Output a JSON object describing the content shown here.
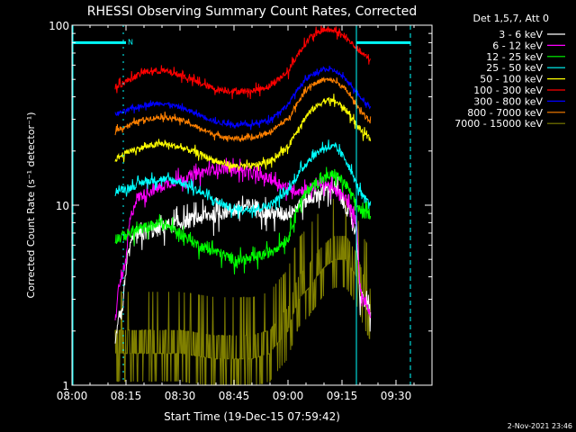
{
  "chart_data": {
    "type": "line",
    "title": "RHESSI Observing Summary Count Rates, Corrected",
    "xlabel": "Start Time (19-Dec-15 07:59:42)",
    "ylabel": "Corrected Count Rate (s⁻¹ detector⁻¹)",
    "ylog": true,
    "ylim": [
      1,
      100
    ],
    "xlim_minutes": [
      0,
      100
    ],
    "x_ticks": [
      "08:00",
      "08:15",
      "08:30",
      "08:45",
      "09:00",
      "09:15",
      "09:30"
    ],
    "x_tick_minutes": [
      0,
      15,
      30,
      45,
      60,
      75,
      90
    ],
    "y_ticks": [
      "1",
      "10",
      "100"
    ],
    "y_tick_values": [
      1,
      10,
      100
    ],
    "legend_title": "Det 1,5,7, Att 0",
    "legend_position": "right",
    "timestamp": "2-Nov-2021 23:46",
    "flag_label": "N",
    "data_start_minute": 12,
    "data_end_minute": 83,
    "markers": {
      "color": "#00ffff",
      "solid_vertical_minute": 79,
      "dashed_vertical_minute": 94,
      "left_vertical_minute": 0,
      "flag_bar_before_minutes": [
        0,
        15
      ],
      "flag_bar_after_minutes": [
        79,
        94
      ],
      "flag_bar_level": 80
    },
    "series": [
      {
        "name": "3 - 6 keV",
        "color": "#ffffff",
        "noise": 0.1,
        "points": [
          [
            12,
            1.6
          ],
          [
            13,
            2.6
          ],
          [
            14,
            2.5
          ],
          [
            15,
            4.5
          ],
          [
            17,
            6.5
          ],
          [
            20,
            7
          ],
          [
            25,
            7.5
          ],
          [
            30,
            8
          ],
          [
            35,
            8.5
          ],
          [
            40,
            9
          ],
          [
            45,
            9.5
          ],
          [
            50,
            10
          ],
          [
            55,
            9
          ],
          [
            60,
            9
          ],
          [
            63,
            10
          ],
          [
            66,
            11
          ],
          [
            70,
            12
          ],
          [
            73,
            12.5
          ],
          [
            76,
            10
          ],
          [
            79,
            7
          ],
          [
            80,
            3
          ],
          [
            81,
            3
          ],
          [
            83,
            2.5
          ]
        ]
      },
      {
        "name": "6 - 12 keV",
        "color": "#ff00ff",
        "noise": 0.07,
        "points": [
          [
            12,
            2.2
          ],
          [
            13,
            3.5
          ],
          [
            15,
            4.8
          ],
          [
            16,
            8
          ],
          [
            18,
            11
          ],
          [
            22,
            12
          ],
          [
            28,
            13.5
          ],
          [
            35,
            15
          ],
          [
            40,
            16
          ],
          [
            45,
            16
          ],
          [
            50,
            15
          ],
          [
            55,
            14
          ],
          [
            60,
            12.5
          ],
          [
            63,
            12
          ],
          [
            66,
            12.5
          ],
          [
            70,
            13.5
          ],
          [
            73,
            12
          ],
          [
            76,
            11
          ],
          [
            79,
            8
          ],
          [
            80,
            3.5
          ],
          [
            81,
            3
          ],
          [
            83,
            2.5
          ]
        ]
      },
      {
        "name": "12 - 25 keV",
        "color": "#00ff00",
        "noise": 0.07,
        "points": [
          [
            12,
            6.5
          ],
          [
            16,
            7
          ],
          [
            20,
            7.5
          ],
          [
            25,
            8
          ],
          [
            30,
            7
          ],
          [
            35,
            6
          ],
          [
            40,
            5.5
          ],
          [
            45,
            5
          ],
          [
            50,
            5
          ],
          [
            55,
            5.5
          ],
          [
            60,
            6.5
          ],
          [
            63,
            10
          ],
          [
            66,
            12.5
          ],
          [
            70,
            14
          ],
          [
            73,
            15
          ],
          [
            76,
            13
          ],
          [
            79,
            10
          ],
          [
            81,
            9
          ],
          [
            83,
            9
          ]
        ]
      },
      {
        "name": "25 - 50 keV",
        "color": "#00ffff",
        "noise": 0.05,
        "points": [
          [
            12,
            12
          ],
          [
            16,
            12.5
          ],
          [
            20,
            13.5
          ],
          [
            25,
            14
          ],
          [
            30,
            13.5
          ],
          [
            35,
            12
          ],
          [
            40,
            10.5
          ],
          [
            45,
            9.5
          ],
          [
            50,
            9.5
          ],
          [
            55,
            10
          ],
          [
            60,
            12
          ],
          [
            63,
            15
          ],
          [
            66,
            18
          ],
          [
            70,
            21
          ],
          [
            73,
            21
          ],
          [
            76,
            18
          ],
          [
            79,
            13
          ],
          [
            81,
            11
          ],
          [
            83,
            10
          ]
        ]
      },
      {
        "name": "50 - 100 keV",
        "color": "#ffff00",
        "noise": 0.04,
        "points": [
          [
            12,
            18
          ],
          [
            16,
            20
          ],
          [
            20,
            21
          ],
          [
            25,
            22
          ],
          [
            30,
            21
          ],
          [
            35,
            19.5
          ],
          [
            40,
            17.5
          ],
          [
            45,
            16.5
          ],
          [
            50,
            16.5
          ],
          [
            55,
            17.5
          ],
          [
            60,
            21
          ],
          [
            63,
            27
          ],
          [
            66,
            33
          ],
          [
            70,
            38
          ],
          [
            73,
            38
          ],
          [
            76,
            34
          ],
          [
            79,
            28
          ],
          [
            81,
            25
          ],
          [
            83,
            23
          ]
        ]
      },
      {
        "name": "100 - 300 keV",
        "color": "#ff0000",
        "noise": 0.04,
        "points": [
          [
            12,
            45
          ],
          [
            16,
            50
          ],
          [
            20,
            55
          ],
          [
            25,
            56
          ],
          [
            30,
            53
          ],
          [
            35,
            48
          ],
          [
            40,
            44
          ],
          [
            45,
            43
          ],
          [
            50,
            43
          ],
          [
            55,
            46
          ],
          [
            60,
            55
          ],
          [
            63,
            70
          ],
          [
            66,
            85
          ],
          [
            70,
            95
          ],
          [
            73,
            93
          ],
          [
            76,
            85
          ],
          [
            79,
            75
          ],
          [
            81,
            68
          ],
          [
            83,
            65
          ]
        ]
      },
      {
        "name": "300 - 800 keV",
        "color": "#0000ff",
        "noise": 0.03,
        "points": [
          [
            12,
            32
          ],
          [
            16,
            34
          ],
          [
            20,
            36
          ],
          [
            25,
            37
          ],
          [
            30,
            35
          ],
          [
            35,
            32
          ],
          [
            40,
            29
          ],
          [
            45,
            28
          ],
          [
            50,
            28
          ],
          [
            55,
            30
          ],
          [
            60,
            36
          ],
          [
            63,
            45
          ],
          [
            66,
            52
          ],
          [
            70,
            57
          ],
          [
            73,
            56
          ],
          [
            76,
            50
          ],
          [
            79,
            43
          ],
          [
            81,
            38
          ],
          [
            83,
            35
          ]
        ]
      },
      {
        "name": "800 - 7000 keV",
        "color": "#ff8000",
        "noise": 0.03,
        "points": [
          [
            12,
            26
          ],
          [
            16,
            28
          ],
          [
            20,
            30
          ],
          [
            25,
            31
          ],
          [
            30,
            30
          ],
          [
            35,
            27
          ],
          [
            40,
            24.5
          ],
          [
            45,
            23.5
          ],
          [
            50,
            23.5
          ],
          [
            55,
            25.5
          ],
          [
            60,
            30
          ],
          [
            63,
            38
          ],
          [
            66,
            46
          ],
          [
            70,
            50
          ],
          [
            73,
            49
          ],
          [
            76,
            44
          ],
          [
            79,
            36
          ],
          [
            81,
            32
          ],
          [
            83,
            29
          ]
        ]
      },
      {
        "name": "7000 - 15000 keV",
        "color": "#808000",
        "noise": 0.15,
        "points": [
          [
            12,
            1.5
          ],
          [
            20,
            1.5
          ],
          [
            30,
            1.5
          ],
          [
            40,
            1.4
          ],
          [
            50,
            1.4
          ],
          [
            55,
            1.5
          ],
          [
            60,
            2
          ],
          [
            63,
            3
          ],
          [
            66,
            3.5
          ],
          [
            70,
            4.5
          ],
          [
            73,
            5
          ],
          [
            76,
            5
          ],
          [
            79,
            4
          ],
          [
            81,
            3
          ],
          [
            83,
            2.5
          ]
        ]
      }
    ]
  }
}
